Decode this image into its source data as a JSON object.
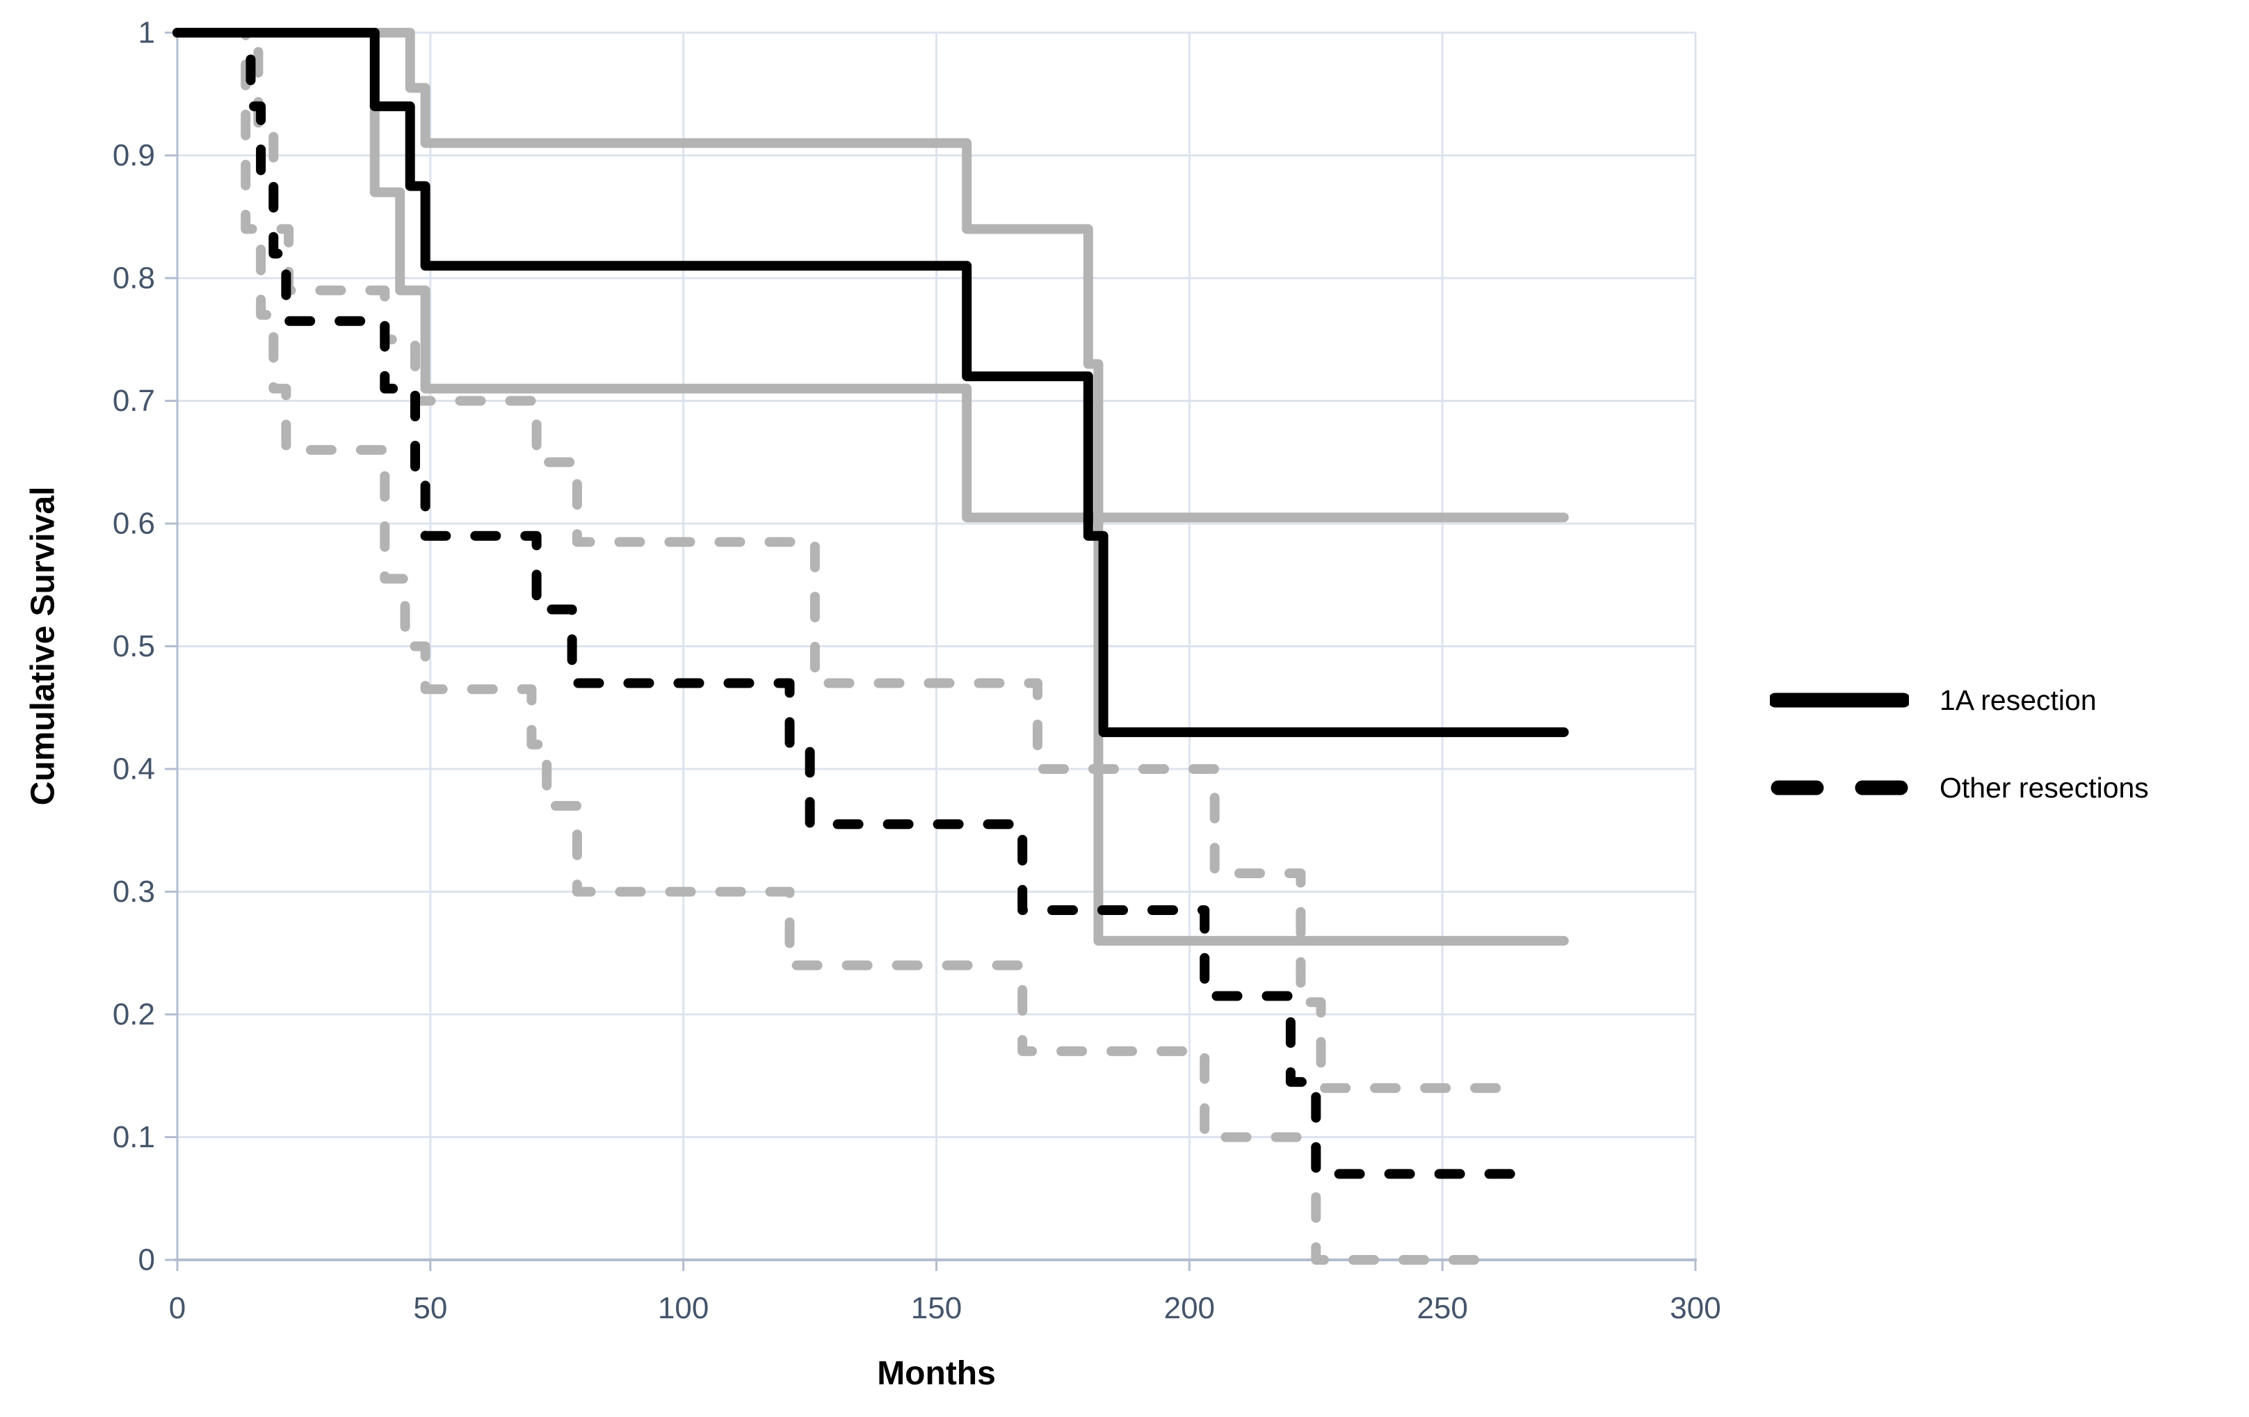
{
  "chart_data": {
    "type": "line",
    "subtype": "kaplan-meier-step",
    "title": "",
    "xlabel": "Months",
    "ylabel": "Cumulative Survival",
    "xlim": [
      0,
      300
    ],
    "ylim": [
      0,
      1
    ],
    "x_ticks": [
      0,
      50,
      100,
      150,
      200,
      250,
      300
    ],
    "x_tick_labels": [
      "0",
      "50",
      "100",
      "150",
      "200",
      "250",
      "300"
    ],
    "y_ticks": [
      1,
      0.9,
      0.8,
      0.7,
      0.6,
      0.5,
      0.4,
      0.3,
      0.2,
      0.1,
      0
    ],
    "y_tick_labels": [
      "1",
      "0.9",
      "0.8",
      "0.7",
      "0.6",
      "0.5",
      "0.4",
      "0.3",
      "0.2",
      "0.1",
      "0"
    ],
    "grid": true,
    "legend": {
      "position": "right",
      "entries": [
        {
          "label": "1A resection",
          "style": "solid",
          "color": "#000000"
        },
        {
          "label": "Other resections",
          "style": "dashed",
          "color": "#000000"
        }
      ]
    },
    "series": [
      {
        "name": "1A resection upper 95% CI",
        "role": "confidence-bound",
        "color": "#b3b3b3",
        "dash": "solid",
        "points": [
          [
            0,
            1
          ],
          [
            46,
            1
          ],
          [
            46,
            0.955
          ],
          [
            49,
            0.955
          ],
          [
            49,
            0.91
          ],
          [
            156,
            0.91
          ],
          [
            156,
            0.84
          ],
          [
            180,
            0.84
          ],
          [
            180,
            0.73
          ],
          [
            182,
            0.73
          ],
          [
            182,
            0.605
          ],
          [
            274,
            0.605
          ]
        ]
      },
      {
        "name": "1A resection lower 95% CI",
        "role": "confidence-bound",
        "color": "#b3b3b3",
        "dash": "solid",
        "points": [
          [
            0,
            1
          ],
          [
            39,
            1
          ],
          [
            39,
            0.87
          ],
          [
            44,
            0.87
          ],
          [
            44,
            0.79
          ],
          [
            49,
            0.79
          ],
          [
            49,
            0.71
          ],
          [
            156,
            0.71
          ],
          [
            156,
            0.605
          ],
          [
            182,
            0.605
          ],
          [
            182,
            0.26
          ],
          [
            274,
            0.26
          ]
        ]
      },
      {
        "name": "Other resections upper 95% CI",
        "role": "confidence-bound",
        "color": "#b3b3b3",
        "dash": "dashed",
        "points": [
          [
            0,
            1
          ],
          [
            16,
            1
          ],
          [
            16,
            0.92
          ],
          [
            19,
            0.92
          ],
          [
            19,
            0.84
          ],
          [
            22,
            0.84
          ],
          [
            22,
            0.79
          ],
          [
            41,
            0.79
          ],
          [
            41,
            0.75
          ],
          [
            47,
            0.75
          ],
          [
            47,
            0.7
          ],
          [
            71,
            0.7
          ],
          [
            71,
            0.65
          ],
          [
            79,
            0.65
          ],
          [
            79,
            0.585
          ],
          [
            126,
            0.585
          ],
          [
            126,
            0.47
          ],
          [
            170,
            0.47
          ],
          [
            170,
            0.4
          ],
          [
            205,
            0.4
          ],
          [
            205,
            0.315
          ],
          [
            222,
            0.315
          ],
          [
            222,
            0.21
          ],
          [
            226,
            0.21
          ],
          [
            226,
            0.14
          ],
          [
            262,
            0.14
          ]
        ]
      },
      {
        "name": "Other resections lower 95% CI",
        "role": "confidence-bound",
        "color": "#b3b3b3",
        "dash": "dashed",
        "points": [
          [
            0,
            1
          ],
          [
            13.5,
            1
          ],
          [
            13.5,
            0.84
          ],
          [
            16.5,
            0.84
          ],
          [
            16.5,
            0.77
          ],
          [
            19,
            0.77
          ],
          [
            19,
            0.71
          ],
          [
            21.5,
            0.71
          ],
          [
            21.5,
            0.66
          ],
          [
            41,
            0.66
          ],
          [
            41,
            0.555
          ],
          [
            45,
            0.555
          ],
          [
            45,
            0.5
          ],
          [
            49,
            0.5
          ],
          [
            49,
            0.465
          ],
          [
            70,
            0.465
          ],
          [
            70,
            0.42
          ],
          [
            73,
            0.42
          ],
          [
            73,
            0.37
          ],
          [
            79,
            0.37
          ],
          [
            79,
            0.3
          ],
          [
            121,
            0.3
          ],
          [
            121,
            0.24
          ],
          [
            167,
            0.24
          ],
          [
            167,
            0.17
          ],
          [
            203,
            0.17
          ],
          [
            203,
            0.1
          ],
          [
            225,
            0.1
          ],
          [
            225,
            0
          ],
          [
            262,
            0
          ]
        ]
      },
      {
        "name": "1A resection",
        "role": "survival-curve",
        "color": "#000000",
        "dash": "solid",
        "points": [
          [
            0,
            1
          ],
          [
            39,
            1
          ],
          [
            39,
            0.94
          ],
          [
            46,
            0.94
          ],
          [
            46,
            0.875
          ],
          [
            49,
            0.875
          ],
          [
            49,
            0.81
          ],
          [
            156,
            0.81
          ],
          [
            156,
            0.72
          ],
          [
            180,
            0.72
          ],
          [
            180,
            0.59
          ],
          [
            183,
            0.59
          ],
          [
            183,
            0.43
          ],
          [
            274,
            0.43
          ]
        ]
      },
      {
        "name": "Other resections",
        "role": "survival-curve",
        "color": "#000000",
        "dash": "dashed",
        "points": [
          [
            0,
            1
          ],
          [
            14.5,
            1
          ],
          [
            14.5,
            0.94
          ],
          [
            16.5,
            0.94
          ],
          [
            16.5,
            0.88
          ],
          [
            19,
            0.88
          ],
          [
            19,
            0.82
          ],
          [
            21.5,
            0.82
          ],
          [
            21.5,
            0.765
          ],
          [
            41,
            0.765
          ],
          [
            41,
            0.71
          ],
          [
            47,
            0.71
          ],
          [
            47,
            0.645
          ],
          [
            49,
            0.645
          ],
          [
            49,
            0.59
          ],
          [
            71,
            0.59
          ],
          [
            71,
            0.53
          ],
          [
            78,
            0.53
          ],
          [
            78,
            0.47
          ],
          [
            121,
            0.47
          ],
          [
            121,
            0.415
          ],
          [
            125,
            0.415
          ],
          [
            125,
            0.355
          ],
          [
            167,
            0.355
          ],
          [
            167,
            0.285
          ],
          [
            203,
            0.285
          ],
          [
            203,
            0.215
          ],
          [
            220,
            0.215
          ],
          [
            220,
            0.145
          ],
          [
            225,
            0.145
          ],
          [
            225,
            0.07
          ],
          [
            265,
            0.07
          ]
        ]
      }
    ]
  },
  "colors": {
    "background": "#ffffff",
    "gridline": "#dde3ee",
    "axis_line": "#b3bdd0",
    "tick_label": "#44546a",
    "km_line": "#000000",
    "ci_line": "#b3b3b3"
  }
}
